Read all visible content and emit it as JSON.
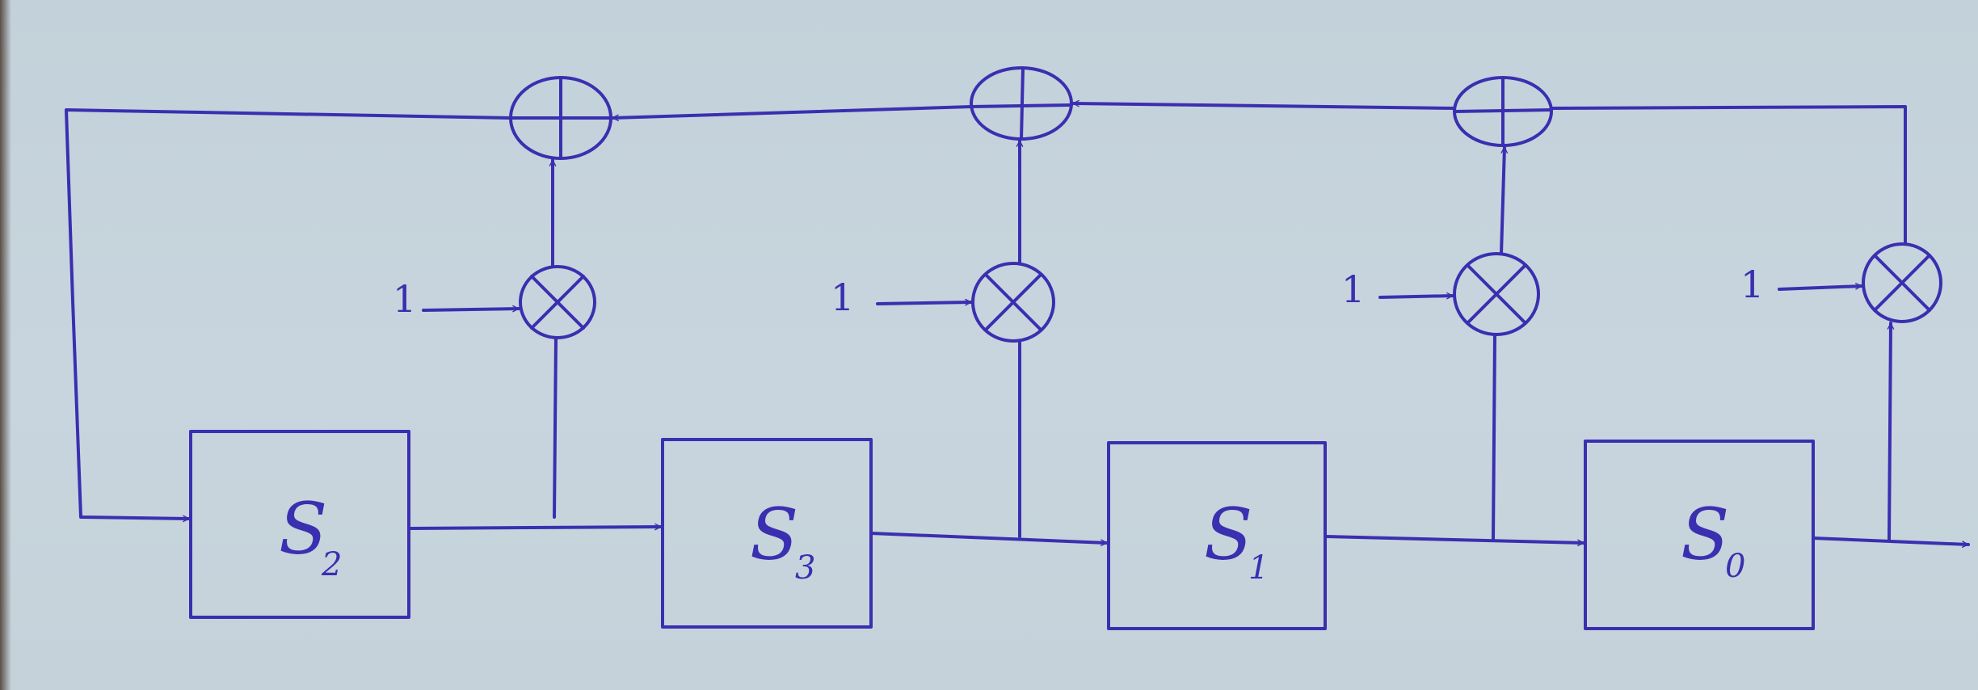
{
  "registers": [
    {
      "id": "s2",
      "name": "S",
      "subscript": "2"
    },
    {
      "id": "s3",
      "name": "S",
      "subscript": "3"
    },
    {
      "id": "s1",
      "name": "S",
      "subscript": "1"
    },
    {
      "id": "s0",
      "name": "S",
      "subscript": "0"
    }
  ],
  "multipliers": [
    {
      "coefficient": "1"
    },
    {
      "coefficient": "1"
    },
    {
      "coefficient": "1"
    },
    {
      "coefficient": "1"
    }
  ],
  "ink_color": "#3a2fb0",
  "paper_color": "#c6d3dc"
}
